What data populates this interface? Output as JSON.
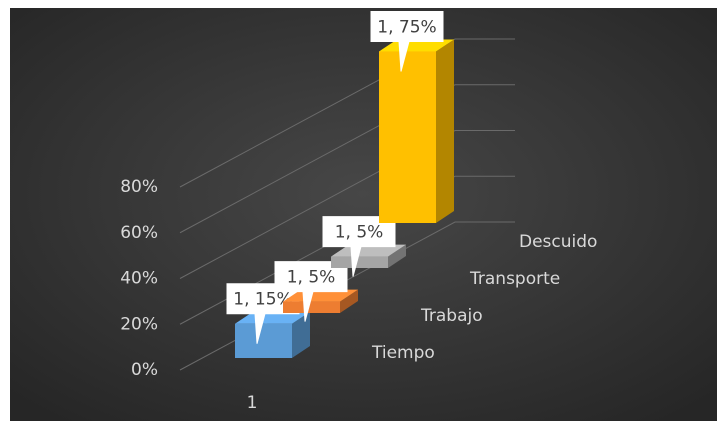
{
  "chart_data": {
    "type": "bar3d",
    "categories": [
      "1"
    ],
    "series": [
      {
        "name": "Tiempo",
        "color": "#5b9bd5",
        "values": [
          15
        ],
        "value_labels": [
          "1, 15%"
        ]
      },
      {
        "name": "Trabajo",
        "color": "#ed7d31",
        "values": [
          5
        ],
        "value_labels": [
          "1, 5%"
        ]
      },
      {
        "name": "Transporte",
        "color": "#a5a5a5",
        "values": [
          5
        ],
        "value_labels": [
          "1, 5%"
        ]
      },
      {
        "name": "Descuido",
        "color": "#ffc000",
        "values": [
          75
        ],
        "value_labels": [
          "1, 75%"
        ]
      }
    ],
    "ylim": [
      0,
      80
    ],
    "yticks": [
      {
        "value": 0,
        "label": "0%"
      },
      {
        "value": 20,
        "label": "20%"
      },
      {
        "value": 40,
        "label": "40%"
      },
      {
        "value": 60,
        "label": "60%"
      },
      {
        "value": 80,
        "label": "80%"
      }
    ],
    "grid": true
  }
}
